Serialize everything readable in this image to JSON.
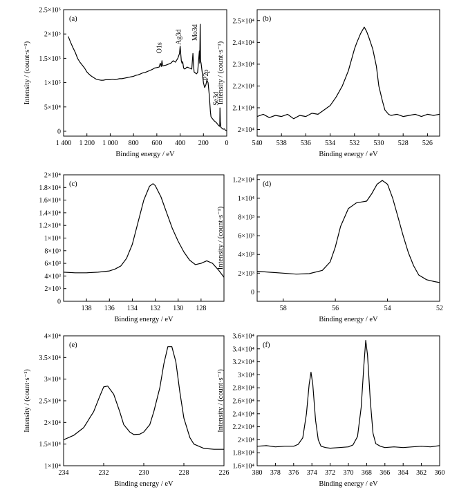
{
  "chart_data": [
    {
      "id": "a",
      "type": "line",
      "panel_label": "(a)",
      "xlabel": "Binding energy / eV",
      "ylabel": "Intensity / (count·s⁻¹)",
      "xlim": [
        1400,
        0
      ],
      "ylim": [
        -10000,
        250000
      ],
      "xticks": [
        1400,
        1200,
        1000,
        800,
        600,
        400,
        200,
        0
      ],
      "xtick_labels": [
        "1 400",
        "1 200",
        "1 000",
        "800",
        "600",
        "400",
        "200",
        "0"
      ],
      "yticks": [
        0,
        50000,
        100000,
        150000,
        200000,
        250000
      ],
      "ytick_labels": [
        "0",
        "5×10⁴",
        "1×10⁵",
        "1.5×10⁵",
        "2×10⁵",
        "2.5×10⁵"
      ],
      "annotations": [
        {
          "text": "O1s",
          "x": 560,
          "y": 160000
        },
        {
          "text": "Ag3d",
          "x": 395,
          "y": 178000
        },
        {
          "text": "Mo3d",
          "x": 255,
          "y": 186000
        },
        {
          "text": "P2p",
          "x": 160,
          "y": 105000
        },
        {
          "text": "Se3d",
          "x": 75,
          "y": 53000
        }
      ],
      "series": [
        {
          "x": [
            1360,
            1340,
            1320,
            1300,
            1280,
            1260,
            1240,
            1220,
            1200,
            1180,
            1160,
            1140,
            1120,
            1100,
            1080,
            1060,
            1040,
            1020,
            1000,
            980,
            960,
            940,
            920,
            900,
            880,
            860,
            840,
            820,
            800,
            780,
            760,
            740,
            720,
            700,
            680,
            660,
            640,
            620,
            600,
            580,
            570,
            562,
            556,
            550,
            540,
            520,
            500,
            480,
            460,
            440,
            420,
            405,
            400,
            390,
            384,
            378,
            370,
            360,
            340,
            320,
            300,
            290,
            285,
            280,
            270,
            260,
            250,
            240,
            235,
            232,
            228,
            225,
            220,
            210,
            200,
            190,
            180,
            170,
            160,
            150,
            140,
            135,
            130,
            120,
            110,
            100,
            90,
            80,
            70,
            60,
            58,
            55,
            50,
            40,
            30,
            20,
            10,
            0
          ],
          "y": [
            195000,
            183000,
            172000,
            162000,
            150000,
            142000,
            136000,
            130000,
            122000,
            117000,
            113000,
            110000,
            107000,
            106000,
            105000,
            105000,
            106000,
            106000,
            106000,
            107000,
            106000,
            107000,
            108000,
            108000,
            109000,
            110000,
            111000,
            112000,
            113000,
            115000,
            116000,
            118000,
            120000,
            121000,
            123000,
            125000,
            127000,
            130000,
            131000,
            132000,
            140000,
            133000,
            145000,
            134000,
            135000,
            136000,
            138000,
            140000,
            145000,
            142000,
            150000,
            160000,
            175000,
            145000,
            140000,
            143000,
            130000,
            128000,
            132000,
            130000,
            128000,
            160000,
            135000,
            122000,
            120000,
            118000,
            121000,
            150000,
            165000,
            140000,
            220000,
            145000,
            140000,
            120000,
            100000,
            90000,
            95000,
            105000,
            100000,
            75000,
            40000,
            30000,
            28000,
            25000,
            22000,
            20000,
            18000,
            15000,
            12000,
            10000,
            48000,
            20000,
            8000,
            6000,
            4000,
            5000,
            2000,
            1000
          ]
        }
      ]
    },
    {
      "id": "b",
      "type": "line",
      "panel_label": "(b)",
      "xlabel": "Binding energy / eV",
      "ylabel": "Intensity / (count·s⁻¹)",
      "xlim": [
        540,
        525
      ],
      "ylim": [
        19700,
        25500
      ],
      "xticks": [
        540,
        538,
        536,
        534,
        532,
        530,
        528,
        526
      ],
      "xtick_labels": [
        "540",
        "538",
        "536",
        "534",
        "532",
        "530",
        "528",
        "526"
      ],
      "yticks": [
        20000,
        21000,
        22000,
        23000,
        24000,
        25000
      ],
      "ytick_labels": [
        "2×10⁴",
        "2.1×10⁴",
        "2.2×10⁴",
        "2.3×10⁴",
        "2.4×10⁴",
        "2.5×10⁴"
      ],
      "series": [
        {
          "x": [
            540,
            539.5,
            539,
            538.5,
            538,
            537.5,
            537,
            536.5,
            536,
            535.5,
            535,
            534.5,
            534,
            533.5,
            533,
            532.5,
            532.2,
            532,
            531.8,
            531.5,
            531.2,
            531,
            530.8,
            530.5,
            530.2,
            530,
            529.7,
            529.5,
            529.2,
            529,
            528.5,
            528,
            527.5,
            527,
            526.5,
            526,
            525.5,
            525
          ],
          "y": [
            20600,
            20700,
            20550,
            20650,
            20600,
            20700,
            20500,
            20650,
            20600,
            20750,
            20700,
            20900,
            21100,
            21500,
            22000,
            22700,
            23300,
            23700,
            24000,
            24400,
            24700,
            24500,
            24200,
            23700,
            22900,
            22000,
            21300,
            20900,
            20700,
            20650,
            20700,
            20600,
            20650,
            20700,
            20600,
            20700,
            20650,
            20700
          ]
        }
      ]
    },
    {
      "id": "c",
      "type": "line",
      "panel_label": "(c)",
      "xlabel": "Binding energy / eV",
      "ylabel": "",
      "xlim": [
        140,
        126
      ],
      "ylim": [
        0,
        20000
      ],
      "xticks": [
        138,
        136,
        134,
        132,
        130,
        128
      ],
      "xtick_labels": [
        "138",
        "136",
        "134",
        "132",
        "130",
        "128"
      ],
      "yticks": [
        0,
        2000,
        4000,
        6000,
        8000,
        10000,
        12000,
        14000,
        16000,
        18000,
        20000
      ],
      "ytick_labels": [
        "0",
        "2×10³",
        "4×10³",
        "6×10³",
        "8×10³",
        "1×10⁴",
        "1.2×10⁴",
        "1.4×10⁴",
        "1.6×10⁴",
        "1.8×10⁴",
        "2×10⁴"
      ],
      "series": [
        {
          "x": [
            140,
            139,
            138,
            137,
            136.5,
            136,
            135.5,
            135,
            134.5,
            134,
            133.5,
            133,
            132.5,
            132.2,
            132,
            131.5,
            131,
            130.5,
            130,
            129.5,
            129,
            128.5,
            128,
            127.5,
            127,
            126.5,
            126
          ],
          "y": [
            4600,
            4500,
            4500,
            4600,
            4700,
            4800,
            5100,
            5600,
            6800,
            9000,
            12500,
            16000,
            18200,
            18600,
            18300,
            16500,
            14000,
            11500,
            9500,
            7800,
            6500,
            5800,
            6000,
            6400,
            6000,
            5000,
            3800
          ]
        }
      ]
    },
    {
      "id": "d",
      "type": "line",
      "panel_label": "(d)",
      "xlabel": "Binding energy / eV",
      "ylabel": "Intensity / (count·s⁻¹)",
      "xlim": [
        59,
        52
      ],
      "ylim": [
        -1000,
        12500
      ],
      "xticks": [
        58,
        56,
        54,
        52
      ],
      "xtick_labels": [
        "58",
        "56",
        "54",
        "52"
      ],
      "yticks": [
        0,
        2000,
        4000,
        6000,
        8000,
        10000,
        12000
      ],
      "ytick_labels": [
        "0",
        "2×10³",
        "4×10³",
        "6×10³",
        "8×10³",
        "1×10⁴",
        "1.2×10⁴"
      ],
      "series": [
        {
          "x": [
            59,
            58.5,
            58,
            57.5,
            57,
            56.5,
            56.2,
            56,
            55.8,
            55.5,
            55.2,
            55,
            54.8,
            54.6,
            54.4,
            54.2,
            54,
            53.8,
            53.6,
            53.4,
            53.2,
            53,
            52.8,
            52.5,
            52.2,
            52
          ],
          "y": [
            2200,
            2100,
            2000,
            1900,
            1950,
            2300,
            3200,
            4800,
            7000,
            8900,
            9500,
            9600,
            9700,
            10500,
            11500,
            11900,
            11500,
            10000,
            8000,
            6000,
            4200,
            2800,
            1800,
            1300,
            1100,
            1000
          ]
        }
      ]
    },
    {
      "id": "e",
      "type": "line",
      "panel_label": "(e)",
      "xlabel": "Binding energy / eV",
      "ylabel": "Intensity / (count·s⁻¹)",
      "xlim": [
        234,
        226
      ],
      "ylim": [
        10000,
        40000
      ],
      "xticks": [
        234,
        232,
        230,
        228,
        226
      ],
      "xtick_labels": [
        "234",
        "232",
        "230",
        "228",
        "226"
      ],
      "yticks": [
        10000,
        15000,
        20000,
        25000,
        30000,
        35000,
        40000
      ],
      "ytick_labels": [
        "1×10⁴",
        "1.5×10⁴",
        "2×10⁴",
        "2.5×10⁴",
        "3×10⁴",
        "3.5×10⁴",
        "4×10⁴"
      ],
      "series": [
        {
          "x": [
            234,
            233.5,
            233,
            232.5,
            232.2,
            232,
            231.8,
            231.5,
            231.2,
            231,
            230.7,
            230.5,
            230.2,
            230,
            229.7,
            229.5,
            229.2,
            229,
            228.8,
            228.6,
            228.4,
            228.2,
            228,
            227.7,
            227.5,
            227,
            226.5,
            226
          ],
          "y": [
            16000,
            17000,
            18800,
            22500,
            26000,
            28200,
            28400,
            26500,
            22500,
            19500,
            17800,
            17200,
            17300,
            17800,
            19500,
            22500,
            28000,
            33500,
            37500,
            37500,
            34000,
            27000,
            21000,
            16500,
            15000,
            14000,
            13800,
            13800
          ]
        }
      ]
    },
    {
      "id": "f",
      "type": "line",
      "panel_label": "(f)",
      "xlabel": "Binding energy / eV",
      "ylabel": "Intensity / (count·s⁻¹)",
      "xlim": [
        380,
        360
      ],
      "ylim": [
        16000,
        36000
      ],
      "xticks": [
        380,
        378,
        376,
        374,
        372,
        370,
        368,
        366,
        364,
        362,
        360
      ],
      "xtick_labels": [
        "380",
        "378",
        "376",
        "374",
        "372",
        "370",
        "368",
        "366",
        "364",
        "362",
        "360"
      ],
      "yticks": [
        16000,
        18000,
        20000,
        22000,
        24000,
        26000,
        28000,
        30000,
        32000,
        34000,
        36000
      ],
      "ytick_labels": [
        "1.6×10⁴",
        "1.8×10⁴",
        "2×10⁴",
        "2.2×10⁴",
        "2.4×10⁴",
        "2.6×10⁴",
        "2.8×10⁴",
        "3×10⁴",
        "3.2×10⁴",
        "3.4×10⁴",
        "3.6×10⁴"
      ],
      "series": [
        {
          "x": [
            380,
            379,
            378,
            377,
            376,
            375.5,
            375,
            374.6,
            374.3,
            374.1,
            373.9,
            373.6,
            373.3,
            373,
            372.5,
            372,
            371,
            370,
            369.5,
            369,
            368.6,
            368.3,
            368.1,
            367.9,
            367.6,
            367.3,
            367,
            366.5,
            366,
            365,
            364,
            363,
            362,
            361,
            360
          ],
          "y": [
            19000,
            19100,
            18900,
            19000,
            19000,
            19300,
            20300,
            24000,
            28500,
            30400,
            28500,
            23000,
            20000,
            19000,
            18800,
            18700,
            18800,
            18900,
            19200,
            20500,
            25000,
            31500,
            35300,
            33000,
            26000,
            21000,
            19400,
            19000,
            18800,
            18900,
            18800,
            18900,
            19000,
            18900,
            19100
          ]
        }
      ]
    }
  ]
}
